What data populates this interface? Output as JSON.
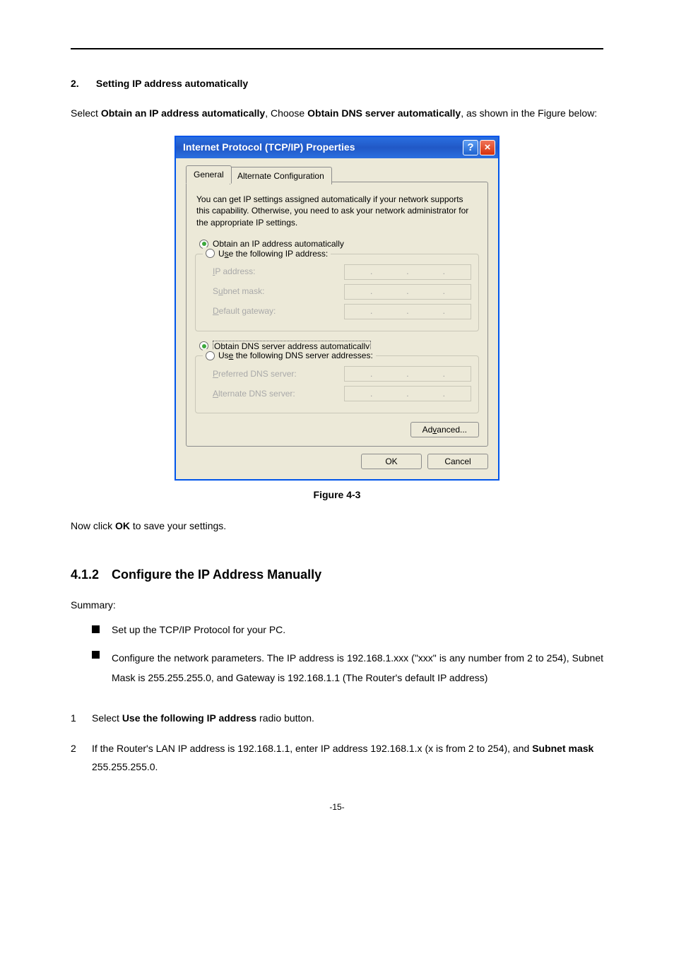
{
  "step": {
    "number": "2.",
    "title": "Setting IP address automatically"
  },
  "intro": {
    "prefix": "Select ",
    "bold1": "Obtain an IP address automatically",
    "mid": ", Choose ",
    "bold2": "Obtain DNS server automatically",
    "suffix": ", as shown in the Figure below:"
  },
  "dialog": {
    "title": "Internet Protocol (TCP/IP) Properties",
    "tabs": {
      "general": "General",
      "alt": "Alternate Configuration"
    },
    "description": "You can get IP settings assigned automatically if your network supports this capability. Otherwise, you need to ask your network administrator for the appropriate IP settings.",
    "radios": {
      "obtain_ip": {
        "u": "O",
        "rest": "btain an IP address automatically",
        "selected": true
      },
      "use_ip": {
        "prefix": "U",
        "u": "s",
        "suffix": "e the following IP address:",
        "selected": false
      },
      "obtain_dns": {
        "prefix": "O",
        "u": "b",
        "suffix": "tain DNS server address automatically",
        "selected": true
      },
      "use_dns": {
        "prefix": "Us",
        "u": "e",
        "suffix": " the following DNS server addresses:",
        "selected": false
      }
    },
    "fields": {
      "ip": {
        "u": "I",
        "rest": "P address:"
      },
      "subnet": {
        "prefix": "S",
        "u": "u",
        "suffix": "bnet mask:"
      },
      "gateway": {
        "u": "D",
        "rest": "efault gateway:"
      },
      "pref_dns": {
        "u": "P",
        "rest": "referred DNS server:"
      },
      "alt_dns": {
        "u": "A",
        "rest": "lternate DNS server:"
      }
    },
    "buttons": {
      "advanced": {
        "prefix": "Ad",
        "u": "v",
        "suffix": "anced..."
      },
      "ok": "OK",
      "cancel": "Cancel"
    },
    "colors": {
      "titlebar_gradient_from": "#2a6fe0",
      "titlebar_gradient_to": "#2158c6",
      "close_bg": "#d6310b",
      "help_bg": "#1e62cf",
      "dialog_bg": "#ece9d8",
      "border": "#0055ea",
      "radio_dot": "#3ba83b"
    }
  },
  "figure_caption": "Figure 4-3",
  "after_figure": {
    "prefix": "Now click ",
    "bold": "OK",
    "suffix": " to save your settings."
  },
  "section": {
    "number": "4.1.2",
    "title": "Configure the IP Address Manually"
  },
  "summary_label": "Summary:",
  "bullets": [
    "Set up the TCP/IP Protocol for your PC.",
    "Configure the network parameters. The IP address is 192.168.1.xxx (\"xxx\" is any number from 2 to 254), Subnet Mask is 255.255.255.0, and Gateway is 192.168.1.1 (The Router's default IP address)"
  ],
  "numlist": [
    {
      "n": "1",
      "prefix": "Select ",
      "bold": "Use the following IP address",
      "suffix": " radio button."
    },
    {
      "n": "2",
      "prefix": "If the Router's LAN IP address is 192.168.1.1, enter IP address 192.168.1.x (x is from 2 to 254), and ",
      "bold": "Subnet mask",
      "suffix": " 255.255.255.0."
    }
  ],
  "page_number": "-15-"
}
